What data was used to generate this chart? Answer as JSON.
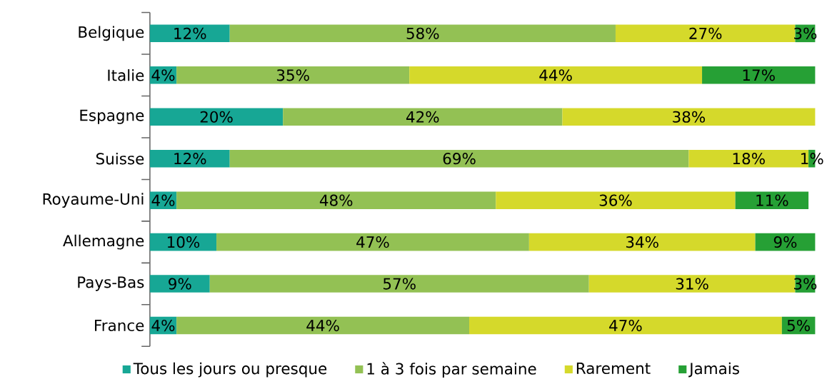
{
  "chart_data": {
    "type": "bar",
    "orientation": "horizontal",
    "stacked": true,
    "legend": "bottom",
    "tick_labels": "y",
    "categories": [
      "Belgique",
      "Italie",
      "Espagne",
      "Suisse",
      "Royaume-Uni",
      "Allemagne",
      "Pays-Bas",
      "France"
    ],
    "xlim": [
      0,
      100
    ],
    "series": [
      {
        "name": "Tous les jours ou presque",
        "color": "#17a795",
        "values": [
          12,
          4,
          20,
          12,
          4,
          10,
          9,
          4
        ],
        "value_labels": [
          "12%",
          "4%",
          "20%",
          "12%",
          "4%",
          "10%",
          "9%",
          "4%"
        ]
      },
      {
        "name": "1 à 3 fois par semaine",
        "color": "#93c154",
        "values": [
          58,
          35,
          42,
          69,
          48,
          47,
          57,
          44
        ],
        "value_labels": [
          "58%",
          "35%",
          "42%",
          "69%",
          "48%",
          "47%",
          "57%",
          "44%"
        ]
      },
      {
        "name": "Rarement",
        "color": "#d5d92b",
        "values": [
          27,
          44,
          38,
          18,
          36,
          34,
          31,
          47
        ],
        "value_labels": [
          "27%",
          "44%",
          "38%",
          "18%",
          "36%",
          "34%",
          "31%",
          "47%"
        ]
      },
      {
        "name": "Jamais",
        "color": "#26a035",
        "values": [
          3,
          17,
          null,
          1,
          11,
          9,
          3,
          5
        ],
        "value_labels": [
          "3%",
          "17%",
          null,
          "1%",
          "11%",
          "9%",
          "3%",
          "5%"
        ]
      }
    ]
  }
}
